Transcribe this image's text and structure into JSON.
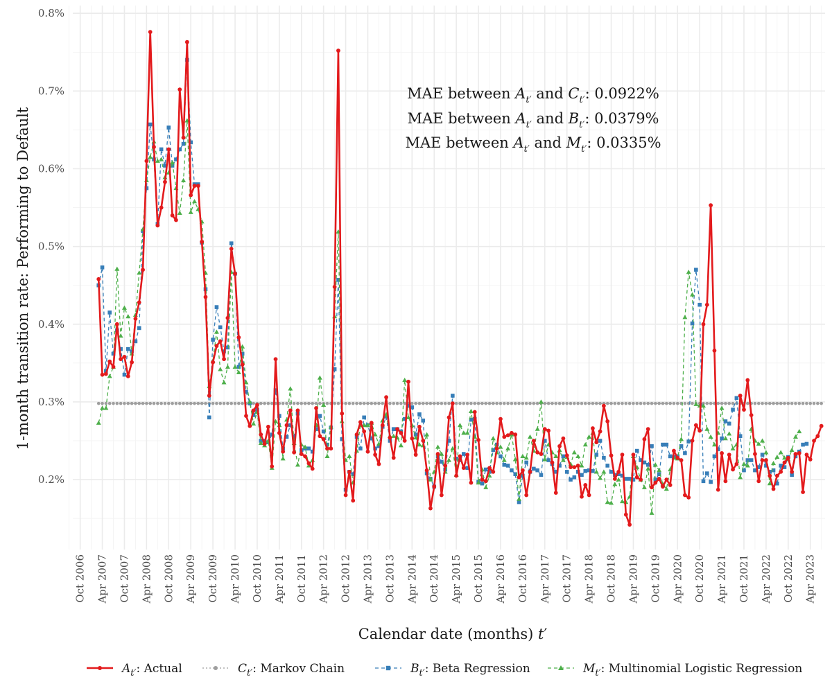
{
  "chart_data": {
    "type": "line",
    "xlabel_prefix": "Calendar date (months) ",
    "xlabel_var": "t",
    "xlabel_suffix": "′",
    "ylabel": "1-month transition rate: Performing to Default",
    "x_start": "2007-03",
    "x_interval_months": 1,
    "xlim": [
      "2006-08",
      "2023-08"
    ],
    "ylim": [
      0.11,
      0.81
    ],
    "y_ticks": [
      0.2,
      0.3,
      0.4,
      0.5,
      0.6,
      0.7,
      0.8
    ],
    "y_tick_labels": [
      "0.2%",
      "0.3%",
      "0.4%",
      "0.5%",
      "0.6%",
      "0.7%",
      "0.8%"
    ],
    "x_ticks": [
      "2006-10",
      "2007-04",
      "2007-10",
      "2008-04",
      "2008-10",
      "2009-04",
      "2009-10",
      "2010-04",
      "2010-10",
      "2011-04",
      "2011-10",
      "2012-04",
      "2012-10",
      "2013-04",
      "2013-10",
      "2014-04",
      "2014-10",
      "2015-04",
      "2015-10",
      "2016-04",
      "2016-10",
      "2017-04",
      "2017-10",
      "2018-04",
      "2018-10",
      "2019-04",
      "2019-10",
      "2020-04",
      "2020-10",
      "2021-04",
      "2021-10",
      "2022-04",
      "2022-10",
      "2023-04"
    ],
    "x_tick_labels": [
      "Oct 2006",
      "Apr 2007",
      "Oct 2007",
      "Apr 2008",
      "Oct 2008",
      "Apr 2009",
      "Oct 2009",
      "Apr 2010",
      "Oct 2010",
      "Apr 2011",
      "Oct 2011",
      "Apr 2012",
      "Oct 2012",
      "Apr 2013",
      "Oct 2013",
      "Apr 2014",
      "Oct 2014",
      "Apr 2015",
      "Oct 2015",
      "Apr 2016",
      "Oct 2016",
      "Apr 2017",
      "Oct 2017",
      "Apr 2018",
      "Oct 2018",
      "Apr 2019",
      "Oct 2019",
      "Apr 2020",
      "Oct 2020",
      "Apr 2021",
      "Oct 2021",
      "Apr 2022",
      "Oct 2022",
      "Apr 2023"
    ],
    "grid": true,
    "legend_position": "bottom",
    "annotations": [
      {
        "prefix": "MAE between ",
        "var1": "A",
        "mid": " and ",
        "var2": "C",
        "sub": "t′",
        "value": ": 0.0922%"
      },
      {
        "prefix": "MAE between ",
        "var1": "A",
        "mid": " and ",
        "var2": "B",
        "sub": "t′",
        "value": ": 0.0379%"
      },
      {
        "prefix": "MAE between ",
        "var1": "A",
        "mid": " and ",
        "var2": "M",
        "sub": "t′",
        "value": ": 0.0335%"
      }
    ],
    "series": [
      {
        "symbol": "A",
        "sub": "t′",
        "label": ": Actual",
        "color": "#e31a1c",
        "marker": "circle",
        "dash": "solid",
        "values": [
          0.458,
          0.335,
          0.336,
          0.352,
          0.345,
          0.4,
          0.355,
          0.358,
          0.333,
          0.351,
          0.407,
          0.428,
          0.47,
          0.61,
          0.776,
          0.628,
          0.527,
          0.55,
          0.583,
          0.625,
          0.54,
          0.534,
          0.702,
          0.64,
          0.763,
          0.566,
          0.578,
          0.578,
          0.506,
          0.435,
          0.308,
          0.351,
          0.372,
          0.378,
          0.355,
          0.408,
          0.497,
          0.465,
          0.383,
          0.348,
          0.282,
          0.269,
          0.289,
          0.296,
          0.258,
          0.246,
          0.268,
          0.217,
          0.355,
          0.26,
          0.236,
          0.27,
          0.289,
          0.235,
          0.289,
          0.233,
          0.23,
          0.221,
          0.214,
          0.292,
          0.256,
          0.252,
          0.24,
          0.24,
          0.448,
          0.752,
          0.285,
          0.18,
          0.21,
          0.173,
          0.258,
          0.274,
          0.262,
          0.236,
          0.273,
          0.232,
          0.22,
          0.27,
          0.306,
          0.254,
          0.228,
          0.265,
          0.26,
          0.25,
          0.326,
          0.253,
          0.232,
          0.268,
          0.25,
          0.212,
          0.163,
          0.191,
          0.233,
          0.18,
          0.218,
          0.28,
          0.298,
          0.205,
          0.23,
          0.215,
          0.232,
          0.196,
          0.287,
          0.251,
          0.2,
          0.198,
          0.215,
          0.21,
          0.24,
          0.278,
          0.255,
          0.257,
          0.26,
          0.258,
          0.203,
          0.212,
          0.18,
          0.21,
          0.25,
          0.235,
          0.233,
          0.265,
          0.263,
          0.222,
          0.183,
          0.243,
          0.253,
          0.231,
          0.216,
          0.216,
          0.218,
          0.178,
          0.193,
          0.18,
          0.266,
          0.248,
          0.262,
          0.295,
          0.275,
          0.231,
          0.201,
          0.21,
          0.232,
          0.155,
          0.142,
          0.232,
          0.203,
          0.2,
          0.252,
          0.265,
          0.19,
          0.196,
          0.201,
          0.191,
          0.2,
          0.193,
          0.237,
          0.228,
          0.225,
          0.18,
          0.177,
          0.25,
          0.27,
          0.263,
          0.4,
          0.425,
          0.553,
          0.366,
          0.187,
          0.234,
          0.198,
          0.232,
          0.213,
          0.22,
          0.308,
          0.29,
          0.328,
          0.283,
          0.233,
          0.198,
          0.225,
          0.225,
          0.205,
          0.188,
          0.205,
          0.21,
          0.222,
          0.228,
          0.21,
          0.233,
          0.234,
          0.184,
          0.232,
          0.226,
          0.25,
          0.256,
          0.269
        ]
      },
      {
        "symbol": "C",
        "sub": "t′",
        "label": ": Markov Chain",
        "color": "#9e9e9e",
        "marker": "circle",
        "dash": "dotted",
        "constant": 0.298
      },
      {
        "symbol": "B",
        "sub": "t′",
        "label": ": Beta Regression",
        "color": "#377eb8",
        "marker": "square",
        "dash": "dashed",
        "values": [
          0.45,
          0.473,
          0.34,
          0.415,
          0.362,
          0.392,
          0.368,
          0.335,
          0.368,
          0.365,
          0.378,
          0.395,
          0.52,
          0.575,
          0.657,
          0.612,
          0.529,
          0.625,
          0.604,
          0.653,
          0.604,
          0.612,
          0.625,
          0.632,
          0.74,
          0.634,
          0.58,
          0.58,
          0.505,
          0.445,
          0.28,
          0.38,
          0.422,
          0.396,
          0.365,
          0.37,
          0.504,
          0.465,
          0.345,
          0.362,
          0.313,
          0.298,
          0.283,
          0.29,
          0.25,
          0.25,
          0.248,
          0.258,
          0.315,
          0.282,
          0.24,
          0.255,
          0.27,
          0.255,
          0.285,
          0.238,
          0.24,
          0.24,
          0.236,
          0.265,
          0.282,
          0.262,
          0.245,
          0.267,
          0.342,
          0.457,
          0.252,
          0.187,
          0.21,
          0.207,
          0.255,
          0.24,
          0.28,
          0.27,
          0.253,
          0.24,
          0.243,
          0.268,
          0.281,
          0.25,
          0.265,
          0.265,
          0.262,
          0.278,
          0.295,
          0.293,
          0.258,
          0.284,
          0.276,
          0.208,
          0.201,
          0.191,
          0.23,
          0.223,
          0.213,
          0.25,
          0.308,
          0.227,
          0.225,
          0.233,
          0.215,
          0.277,
          0.278,
          0.197,
          0.195,
          0.213,
          0.21,
          0.238,
          0.245,
          0.23,
          0.219,
          0.218,
          0.212,
          0.207,
          0.171,
          0.205,
          0.222,
          0.21,
          0.214,
          0.212,
          0.206,
          0.25,
          0.225,
          0.22,
          0.21,
          0.218,
          0.23,
          0.21,
          0.2,
          0.203,
          0.21,
          0.206,
          0.211,
          0.212,
          0.211,
          0.232,
          0.25,
          0.228,
          0.218,
          0.21,
          0.206,
          0.207,
          0.205,
          0.201,
          0.201,
          0.2,
          0.237,
          0.225,
          0.222,
          0.219,
          0.243,
          0.2,
          0.207,
          0.245,
          0.245,
          0.23,
          0.229,
          0.23,
          0.243,
          0.234,
          0.249,
          0.401,
          0.47,
          0.425,
          0.198,
          0.208,
          0.197,
          0.23,
          0.239,
          0.253,
          0.275,
          0.272,
          0.29,
          0.305,
          0.256,
          0.212,
          0.225,
          0.225,
          0.212,
          0.216,
          0.232,
          0.218,
          0.21,
          0.212,
          0.195,
          0.218,
          0.216,
          0.229,
          0.206,
          0.23,
          0.236,
          0.245,
          0.246
        ]
      },
      {
        "symbol": "M",
        "sub": "t′",
        "label": ": Multinomial Logistic Regression",
        "color": "#4daf4a",
        "marker": "triangle",
        "dash": "dashed",
        "values": [
          0.273,
          0.292,
          0.292,
          0.333,
          0.345,
          0.471,
          0.385,
          0.421,
          0.41,
          0.362,
          0.412,
          0.466,
          0.522,
          0.585,
          0.615,
          0.635,
          0.61,
          0.612,
          0.589,
          0.595,
          0.608,
          0.575,
          0.543,
          0.585,
          0.662,
          0.544,
          0.558,
          0.548,
          0.532,
          0.466,
          0.32,
          0.353,
          0.39,
          0.342,
          0.325,
          0.345,
          0.467,
          0.345,
          0.338,
          0.371,
          0.325,
          0.3,
          0.272,
          0.287,
          0.247,
          0.244,
          0.25,
          0.215,
          0.275,
          0.27,
          0.227,
          0.277,
          0.317,
          0.247,
          0.219,
          0.245,
          0.242,
          0.218,
          0.225,
          0.27,
          0.331,
          0.296,
          0.23,
          0.268,
          0.41,
          0.519,
          0.275,
          0.225,
          0.23,
          0.196,
          0.237,
          0.27,
          0.27,
          0.27,
          0.273,
          0.258,
          0.246,
          0.276,
          0.284,
          0.256,
          0.256,
          0.254,
          0.244,
          0.328,
          0.28,
          0.27,
          0.254,
          0.245,
          0.244,
          0.258,
          0.2,
          0.21,
          0.242,
          0.233,
          0.21,
          0.225,
          0.24,
          0.206,
          0.27,
          0.26,
          0.26,
          0.288,
          0.255,
          0.196,
          0.213,
          0.19,
          0.205,
          0.253,
          0.235,
          0.242,
          0.225,
          0.24,
          0.258,
          0.226,
          0.175,
          0.23,
          0.228,
          0.255,
          0.237,
          0.265,
          0.3,
          0.226,
          0.245,
          0.235,
          0.23,
          0.238,
          0.225,
          0.229,
          0.22,
          0.235,
          0.23,
          0.218,
          0.245,
          0.255,
          0.26,
          0.21,
          0.202,
          0.21,
          0.171,
          0.17,
          0.194,
          0.2,
          0.172,
          0.171,
          0.178,
          0.23,
          0.216,
          0.2,
          0.19,
          0.214,
          0.157,
          0.219,
          0.212,
          0.194,
          0.188,
          0.213,
          0.228,
          0.227,
          0.252,
          0.409,
          0.467,
          0.438,
          0.297,
          0.295,
          0.295,
          0.265,
          0.255,
          0.245,
          0.26,
          0.292,
          0.253,
          0.259,
          0.24,
          0.245,
          0.203,
          0.22,
          0.218,
          0.265,
          0.25,
          0.246,
          0.25,
          0.235,
          0.195,
          0.221,
          0.229,
          0.235,
          0.228,
          0.226,
          0.238,
          0.255,
          0.262
        ]
      }
    ]
  }
}
